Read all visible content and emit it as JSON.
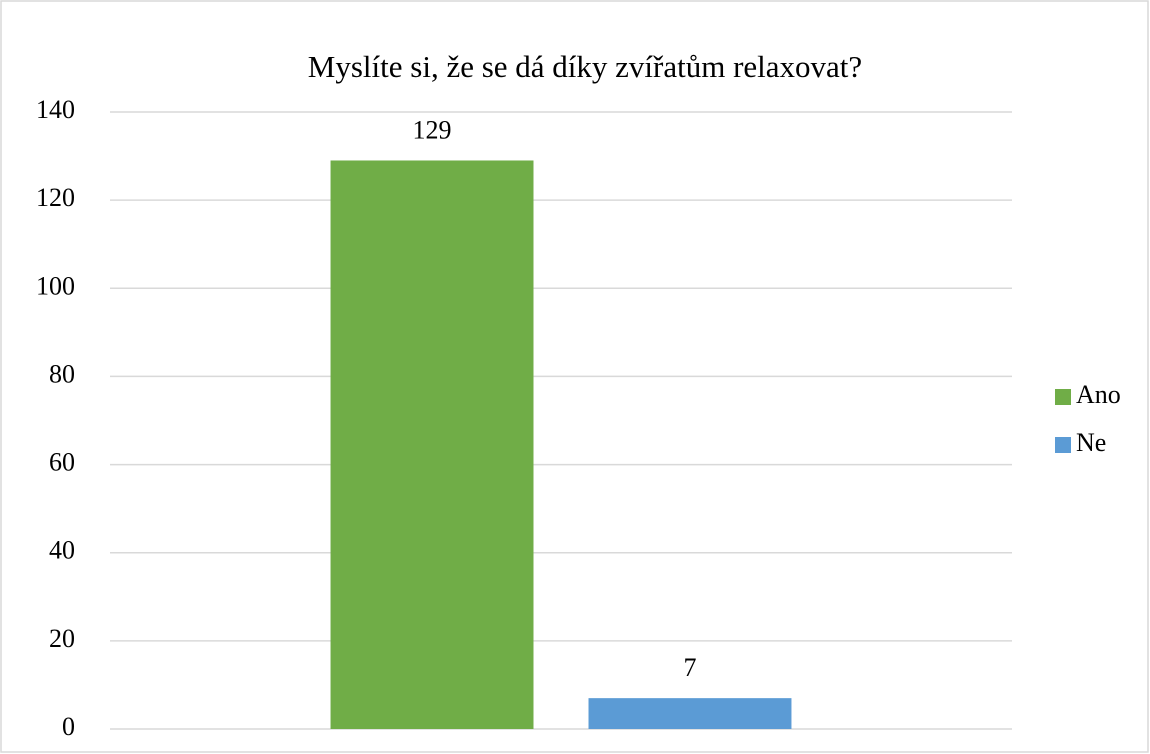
{
  "chart_data": {
    "type": "bar",
    "title": "Myslíte si, že se dá díky zvířatům relaxovat?",
    "categories": [
      null
    ],
    "series": [
      {
        "name": "Ano",
        "color": "#70ad47",
        "values": [
          129
        ]
      },
      {
        "name": "Ne",
        "color": "#5b9bd5",
        "values": [
          7
        ]
      }
    ],
    "ylim": [
      0,
      140
    ],
    "yticks": [
      0,
      20,
      40,
      60,
      80,
      100,
      120,
      140
    ],
    "grid": true,
    "legend": "right"
  }
}
